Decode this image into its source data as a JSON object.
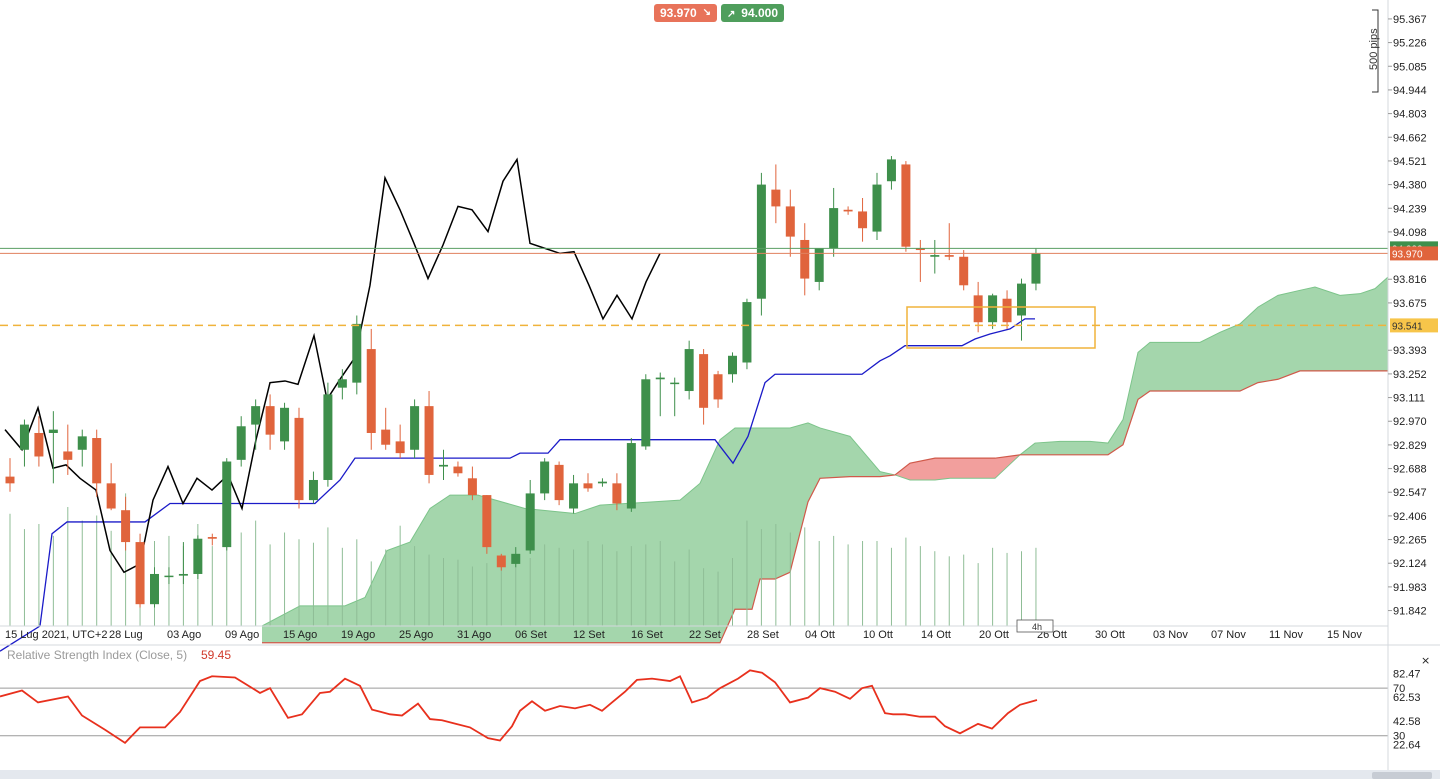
{
  "quotes": {
    "bid": "93.970",
    "bid_arrow": "↘",
    "ask": "94.000",
    "ask_arrow": "↗"
  },
  "pips_label": "500 pips",
  "timeframe": "4h",
  "colors": {
    "up": "#3e8f4b",
    "down": "#e0643c",
    "cloud_bull": "#9fd4a8",
    "cloud_bear": "#f19a98",
    "tenkan": "#1b1bc8",
    "chikou": "#000000",
    "rsi": "#e8301d",
    "hline": "#f0b33b",
    "bid": "#e8735a",
    "ask": "#4f9e5c"
  },
  "chart_data": [
    {
      "type": "candlestick",
      "title": "",
      "ylim": [
        91.75,
        95.45
      ],
      "y_ticks": [
        "95.367",
        "95.226",
        "95.085",
        "94.944",
        "94.803",
        "94.662",
        "94.521",
        "94.380",
        "94.239",
        "94.098",
        "93.816",
        "93.675",
        "93.393",
        "93.252",
        "93.111",
        "92.970",
        "92.829",
        "92.688",
        "92.547",
        "92.406",
        "92.265",
        "92.124",
        "91.983",
        "91.842"
      ],
      "x_tick_labels": [
        "15 Lug 2021, UTC+2",
        "28 Lug",
        "03 Ago",
        "09 Ago",
        "15 Ago",
        "19 Ago",
        "25 Ago",
        "31 Ago",
        "06 Set",
        "12 Set",
        "16 Set",
        "22 Set",
        "28 Set",
        "04 Ott",
        "10 Ott",
        "14 Ott",
        "20 Ott",
        "26 Ott",
        "30 Ott",
        "03 Nov",
        "07 Nov",
        "11 Nov",
        "15 Nov"
      ],
      "price_labels": {
        "ask": "94.000",
        "bid": "93.970",
        "line": "93.541"
      },
      "horizontal_line": 93.541,
      "candles": [
        [
          92.64,
          92.75,
          92.55,
          92.6
        ],
        [
          92.8,
          92.98,
          92.7,
          92.95
        ],
        [
          92.9,
          93.0,
          92.7,
          92.76
        ],
        [
          92.9,
          93.03,
          92.6,
          92.92
        ],
        [
          92.79,
          92.95,
          92.65,
          92.74
        ],
        [
          92.8,
          92.92,
          92.7,
          92.88
        ],
        [
          92.87,
          92.92,
          92.52,
          92.6
        ],
        [
          92.6,
          92.72,
          92.44,
          92.45
        ],
        [
          92.44,
          92.52,
          92.2,
          92.25
        ],
        [
          92.25,
          92.3,
          91.86,
          91.88
        ],
        [
          91.88,
          92.1,
          91.86,
          92.06
        ],
        [
          92.05,
          92.1,
          92.0,
          92.05
        ],
        [
          92.05,
          92.25,
          92.0,
          92.06
        ],
        [
          92.06,
          92.29,
          92.03,
          92.27
        ],
        [
          92.28,
          92.3,
          92.23,
          92.27
        ],
        [
          92.22,
          92.75,
          92.2,
          92.73
        ],
        [
          92.74,
          93.0,
          92.7,
          92.94
        ],
        [
          92.95,
          93.1,
          92.8,
          93.06
        ],
        [
          93.06,
          93.13,
          92.8,
          92.89
        ],
        [
          92.85,
          93.08,
          92.8,
          93.05
        ],
        [
          92.99,
          93.05,
          92.45,
          92.5
        ],
        [
          92.5,
          92.67,
          92.48,
          92.62
        ],
        [
          92.62,
          93.2,
          92.58,
          93.13
        ],
        [
          93.17,
          93.28,
          93.1,
          93.22
        ],
        [
          93.2,
          93.6,
          93.13,
          93.55
        ],
        [
          93.4,
          93.52,
          92.8,
          92.9
        ],
        [
          92.92,
          93.05,
          92.8,
          92.83
        ],
        [
          92.85,
          92.95,
          92.75,
          92.78
        ],
        [
          92.8,
          93.1,
          92.75,
          93.06
        ],
        [
          93.06,
          93.15,
          92.6,
          92.65
        ],
        [
          92.7,
          92.8,
          92.62,
          92.71
        ],
        [
          92.7,
          92.73,
          92.64,
          92.66
        ],
        [
          92.63,
          92.7,
          92.5,
          92.53
        ],
        [
          92.53,
          92.53,
          92.18,
          92.22
        ],
        [
          92.17,
          92.18,
          92.08,
          92.1
        ],
        [
          92.12,
          92.22,
          92.1,
          92.18
        ],
        [
          92.2,
          92.62,
          92.18,
          92.54
        ],
        [
          92.54,
          92.75,
          92.5,
          92.73
        ],
        [
          92.71,
          92.73,
          92.47,
          92.5
        ],
        [
          92.45,
          92.65,
          92.42,
          92.6
        ],
        [
          92.6,
          92.66,
          92.55,
          92.57
        ],
        [
          92.6,
          92.63,
          92.58,
          92.61
        ],
        [
          92.6,
          92.66,
          92.44,
          92.48
        ],
        [
          92.45,
          92.87,
          92.43,
          92.84
        ],
        [
          92.82,
          93.25,
          92.8,
          93.22
        ],
        [
          93.22,
          93.26,
          93.0,
          93.23
        ],
        [
          93.2,
          93.23,
          93.0,
          93.2
        ],
        [
          93.15,
          93.45,
          93.1,
          93.4
        ],
        [
          93.37,
          93.4,
          92.95,
          93.05
        ],
        [
          93.25,
          93.27,
          93.05,
          93.1
        ],
        [
          93.25,
          93.38,
          93.2,
          93.36
        ],
        [
          93.32,
          93.7,
          93.28,
          93.68
        ],
        [
          93.7,
          94.45,
          93.6,
          94.38
        ],
        [
          94.35,
          94.5,
          94.15,
          94.25
        ],
        [
          94.25,
          94.35,
          93.95,
          94.07
        ],
        [
          94.05,
          94.15,
          93.72,
          93.82
        ],
        [
          93.8,
          94.0,
          93.75,
          94.0
        ],
        [
          94.0,
          94.36,
          93.95,
          94.24
        ],
        [
          94.23,
          94.25,
          94.2,
          94.22
        ],
        [
          94.22,
          94.3,
          94.04,
          94.12
        ],
        [
          94.1,
          94.45,
          94.05,
          94.38
        ],
        [
          94.4,
          94.55,
          94.35,
          94.53
        ],
        [
          94.5,
          94.52,
          93.98,
          94.01
        ],
        [
          94.0,
          94.05,
          93.8,
          93.99
        ],
        [
          93.95,
          94.05,
          93.85,
          93.96
        ],
        [
          93.96,
          94.15,
          93.93,
          93.95
        ],
        [
          93.95,
          93.99,
          93.75,
          93.78
        ],
        [
          93.72,
          93.8,
          93.5,
          93.56
        ],
        [
          93.56,
          93.73,
          93.52,
          93.72
        ],
        [
          93.7,
          93.75,
          93.52,
          93.56
        ],
        [
          93.6,
          93.82,
          93.45,
          93.79
        ],
        [
          93.79,
          94.0,
          93.75,
          93.97
        ]
      ],
      "tenkan": [
        [
          0,
          91.6
        ],
        [
          40,
          91.75
        ],
        [
          52,
          92.3
        ],
        [
          67,
          92.37
        ],
        [
          105,
          92.37
        ],
        [
          145,
          92.37
        ],
        [
          170,
          92.48
        ],
        [
          260,
          92.48
        ],
        [
          315,
          92.48
        ],
        [
          340,
          92.62
        ],
        [
          355,
          92.75
        ],
        [
          470,
          92.75
        ],
        [
          510,
          92.75
        ],
        [
          520,
          92.78
        ],
        [
          548,
          92.78
        ],
        [
          560,
          92.86
        ],
        [
          715,
          92.86
        ],
        [
          733,
          92.72
        ],
        [
          748,
          92.88
        ],
        [
          765,
          93.2
        ],
        [
          775,
          93.25
        ],
        [
          862,
          93.25
        ],
        [
          880,
          93.33
        ],
        [
          890,
          93.36
        ],
        [
          905,
          93.42
        ],
        [
          962,
          93.42
        ],
        [
          975,
          93.46
        ],
        [
          990,
          93.49
        ],
        [
          1010,
          93.52
        ],
        [
          1025,
          93.58
        ],
        [
          1035,
          93.58
        ]
      ],
      "chikou": [
        [
          5,
          92.92
        ],
        [
          22,
          92.8
        ],
        [
          38,
          93.05
        ],
        [
          53,
          92.69
        ],
        [
          66,
          92.71
        ],
        [
          80,
          92.63
        ],
        [
          96,
          92.56
        ],
        [
          110,
          92.2
        ],
        [
          124,
          92.07
        ],
        [
          140,
          92.12
        ],
        [
          153,
          92.5
        ],
        [
          168,
          92.7
        ],
        [
          183,
          92.48
        ],
        [
          197,
          92.63
        ],
        [
          212,
          92.56
        ],
        [
          228,
          92.65
        ],
        [
          242,
          92.45
        ],
        [
          256,
          92.86
        ],
        [
          270,
          93.2
        ],
        [
          285,
          93.21
        ],
        [
          298,
          93.19
        ],
        [
          314,
          93.48
        ],
        [
          327,
          93.1
        ],
        [
          340,
          93.22
        ],
        [
          355,
          93.35
        ],
        [
          370,
          93.78
        ],
        [
          385,
          94.42
        ],
        [
          400,
          94.23
        ],
        [
          414,
          94.03
        ],
        [
          428,
          93.82
        ],
        [
          443,
          94.02
        ],
        [
          458,
          94.25
        ],
        [
          472,
          94.23
        ],
        [
          488,
          94.1
        ],
        [
          503,
          94.4
        ],
        [
          517,
          94.53
        ],
        [
          530,
          94.03
        ],
        [
          545,
          94.0
        ],
        [
          560,
          93.97
        ],
        [
          574,
          93.98
        ],
        [
          589,
          93.78
        ],
        [
          603,
          93.58
        ],
        [
          617,
          93.72
        ],
        [
          632,
          93.58
        ],
        [
          646,
          93.8
        ],
        [
          660,
          93.97
        ]
      ],
      "cloud": [
        [
          262,
          91.75,
          91.65
        ],
        [
          300,
          91.87,
          91.65
        ],
        [
          345,
          91.87,
          91.65
        ],
        [
          365,
          91.92,
          91.65
        ],
        [
          387,
          92.2,
          91.65
        ],
        [
          410,
          92.25,
          91.65
        ],
        [
          430,
          92.45,
          91.65
        ],
        [
          450,
          92.53,
          91.65
        ],
        [
          478,
          92.53,
          91.65
        ],
        [
          525,
          92.45,
          91.65
        ],
        [
          575,
          92.42,
          91.65
        ],
        [
          600,
          92.47,
          91.65
        ],
        [
          680,
          92.5,
          91.65
        ],
        [
          700,
          92.6,
          91.65
        ],
        [
          720,
          92.86,
          91.65
        ],
        [
          735,
          92.93,
          91.85
        ],
        [
          752,
          92.93,
          91.85
        ],
        [
          760,
          92.93,
          92.03
        ],
        [
          775,
          92.93,
          92.03
        ],
        [
          790,
          92.93,
          92.07
        ],
        [
          808,
          92.96,
          92.49
        ],
        [
          820,
          92.93,
          92.63
        ],
        [
          850,
          92.88,
          92.64
        ],
        [
          880,
          92.67,
          92.64
        ],
        [
          895,
          92.65,
          92.65
        ],
        [
          910,
          92.62,
          92.72
        ],
        [
          935,
          92.62,
          92.75
        ],
        [
          950,
          92.63,
          92.75
        ],
        [
          995,
          92.63,
          92.75
        ],
        [
          1020,
          92.77,
          92.77
        ],
        [
          1035,
          92.84,
          92.77
        ],
        [
          1060,
          92.85,
          92.77
        ],
        [
          1090,
          92.85,
          92.77
        ],
        [
          1108,
          92.84,
          92.77
        ],
        [
          1123,
          92.98,
          92.83
        ],
        [
          1138,
          93.38,
          93.1
        ],
        [
          1150,
          93.44,
          93.15
        ],
        [
          1200,
          93.44,
          93.15
        ],
        [
          1220,
          93.5,
          93.15
        ],
        [
          1240,
          93.55,
          93.15
        ],
        [
          1258,
          93.65,
          93.2
        ],
        [
          1278,
          93.72,
          93.22
        ],
        [
          1300,
          93.75,
          93.27
        ],
        [
          1315,
          93.77,
          93.27
        ],
        [
          1340,
          93.72,
          93.27
        ],
        [
          1360,
          93.73,
          93.27
        ],
        [
          1375,
          93.76,
          93.27
        ],
        [
          1390,
          93.84,
          93.27
        ]
      ],
      "volume": [
        0.66,
        0.57,
        0.6,
        0.53,
        0.7,
        0.62,
        0.65,
        0.56,
        0.78,
        0.52,
        0.5,
        0.53,
        0.47,
        0.6,
        0.47,
        0.63,
        0.55,
        0.62,
        0.48,
        0.55,
        0.51,
        0.49,
        0.58,
        0.46,
        0.51,
        0.38,
        0.45,
        0.59,
        0.47,
        0.42,
        0.4,
        0.39,
        0.35,
        0.37,
        0.35,
        0.38,
        0.4,
        0.48,
        0.46,
        0.45,
        0.5,
        0.48,
        0.44,
        0.47,
        0.48,
        0.5,
        0.38,
        0.45,
        0.34,
        0.32,
        0.4,
        0.62,
        0.57,
        0.6,
        0.55,
        0.58,
        0.5,
        0.53,
        0.48,
        0.5,
        0.5,
        0.46,
        0.52,
        0.47,
        0.44,
        0.41,
        0.42,
        0.37,
        0.46,
        0.43,
        0.44,
        0.46
      ]
    },
    {
      "type": "line",
      "title": "Relative Strength Index (Close, 5)",
      "value_label": "59.45",
      "ylim": [
        18,
        92
      ],
      "y_ticks": [
        "82.47",
        "70",
        "62.53",
        "42.58",
        "30",
        "22.64"
      ],
      "levels": [
        70,
        30
      ],
      "x": [
        0,
        22,
        38,
        68,
        82,
        105,
        125,
        140,
        165,
        180,
        200,
        212,
        235,
        260,
        270,
        288,
        302,
        320,
        330,
        345,
        360,
        372,
        390,
        402,
        418,
        430,
        442,
        456,
        470,
        488,
        500,
        512,
        520,
        532,
        545,
        560,
        575,
        590,
        602,
        612,
        625,
        637,
        652,
        670,
        680,
        692,
        707,
        720,
        738,
        750,
        762,
        775,
        790,
        808,
        820,
        835,
        850,
        862,
        872,
        885,
        893,
        905,
        920,
        935,
        945,
        960,
        978,
        992,
        1008,
        1020,
        1037
      ],
      "y": [
        63,
        68,
        58,
        63,
        47,
        35,
        24,
        37,
        37,
        50,
        76,
        80,
        79,
        66,
        70,
        45,
        48,
        66,
        67,
        78,
        72,
        52,
        48,
        47,
        57,
        44,
        43,
        40,
        37,
        28,
        26,
        38,
        51,
        59,
        51,
        55,
        53,
        56,
        51,
        58,
        67,
        77,
        78,
        76,
        80,
        58,
        62,
        70,
        78,
        85,
        83,
        75,
        58,
        62,
        70,
        67,
        61,
        70,
        72,
        49,
        48,
        48,
        46,
        46,
        38,
        32,
        40,
        36,
        49,
        56,
        60
      ]
    }
  ]
}
